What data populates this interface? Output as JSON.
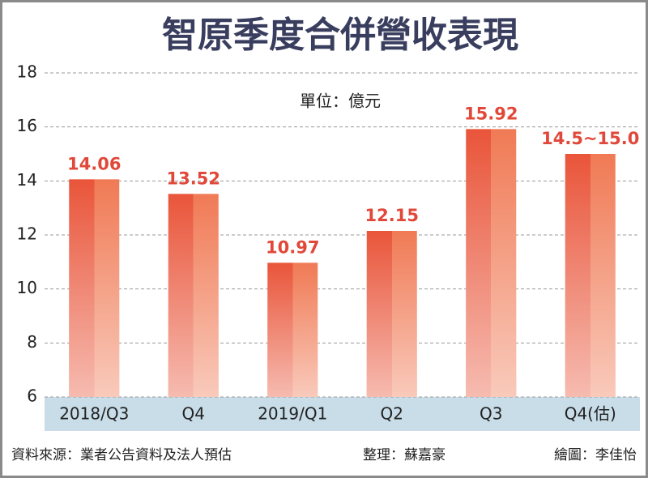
{
  "chart_data": {
    "type": "bar",
    "title": "智原季度合併營收表現",
    "subtitle": "單位：億元",
    "source": "資料來源：業者公告資料及法人預估",
    "editor": "整理：蘇嘉豪",
    "graphics": "繪圖：李佳怡",
    "categories": [
      "2018/Q3",
      "Q4",
      "2019/Q1",
      "Q2",
      "Q3",
      "Q4(估)"
    ],
    "values": [
      14.06,
      13.52,
      10.97,
      12.15,
      15.92,
      15.0
    ],
    "value_labels": [
      "14.06",
      "13.52",
      "10.97",
      "12.15",
      "15.92",
      "14.5~15.0"
    ],
    "color": "#e9553a",
    "ylim": [
      6,
      18
    ],
    "yticks": [
      6,
      8,
      10,
      12,
      14,
      16,
      18
    ],
    "grid": true
  }
}
